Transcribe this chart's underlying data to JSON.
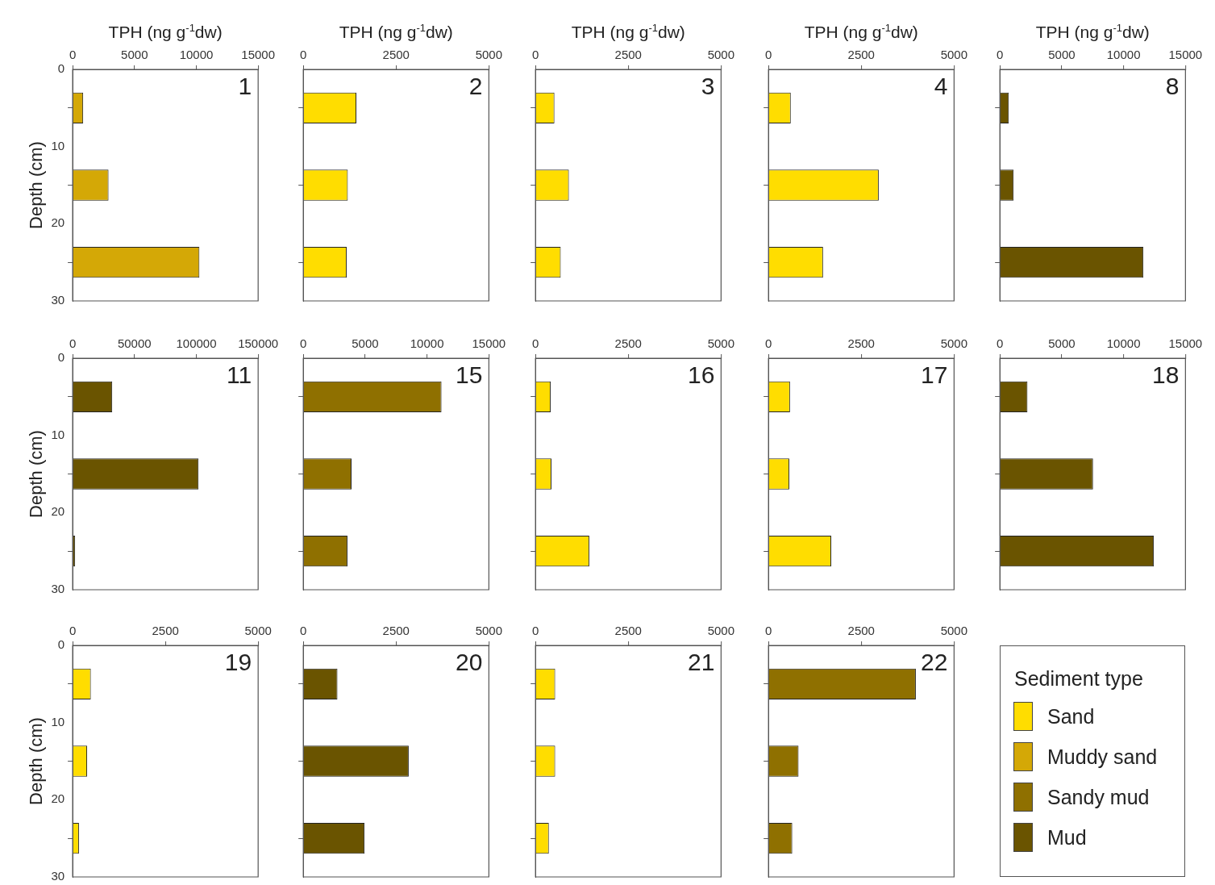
{
  "chart_data": [
    {
      "type": "bar",
      "orientation": "horizontal",
      "title": "1",
      "xlabel": "TPH (ng g$^{-1}$dw)",
      "ylabel": "Depth (cm)",
      "x": [
        5,
        15,
        25
      ],
      "values": [
        850,
        2900,
        10250
      ],
      "color": "#d4a806",
      "xlim": [
        0,
        15000
      ],
      "xticks": [
        0,
        5000,
        10000,
        15000
      ],
      "ylim": [
        30,
        0
      ],
      "yticks": [
        0,
        10,
        20,
        30
      ]
    },
    {
      "type": "bar",
      "orientation": "horizontal",
      "title": "2",
      "xlabel": "TPH (ng g$^{-1}$dw)",
      "x": [
        5,
        15,
        25
      ],
      "values": [
        1430,
        1200,
        1170
      ],
      "color": "#ffdd00",
      "xlim": [
        0,
        5000
      ],
      "xticks": [
        0,
        2500,
        5000
      ],
      "ylim": [
        30,
        0
      ],
      "yticks": [
        0,
        10,
        20,
        30
      ],
      "tick_labels": "x"
    },
    {
      "type": "bar",
      "orientation": "horizontal",
      "title": "3",
      "xlabel": "TPH (ng g$^{-1}$dw)",
      "x": [
        5,
        15,
        25
      ],
      "values": [
        510,
        900,
        680
      ],
      "color": "#ffdd00",
      "xlim": [
        0,
        5000
      ],
      "xticks": [
        0,
        2500,
        5000
      ],
      "ylim": [
        30,
        0
      ],
      "yticks": [
        0,
        10,
        20,
        30
      ],
      "tick_labels": "x"
    },
    {
      "type": "bar",
      "orientation": "horizontal",
      "title": "4",
      "xlabel": "TPH (ng g$^{-1}$dw)",
      "x": [
        5,
        15,
        25
      ],
      "values": [
        600,
        2970,
        1470
      ],
      "color": "#ffdd00",
      "xlim": [
        0,
        5000
      ],
      "xticks": [
        0,
        2500,
        5000
      ],
      "ylim": [
        30,
        0
      ],
      "yticks": [
        0,
        10,
        20,
        30
      ],
      "tick_labels": "x"
    },
    {
      "type": "bar",
      "orientation": "horizontal",
      "title": "8",
      "xlabel": "TPH (ng g$^{-1}$dw)",
      "x": [
        5,
        15,
        25
      ],
      "values": [
        720,
        1110,
        11600
      ],
      "color": "#6a5400",
      "xlim": [
        0,
        15000
      ],
      "xticks": [
        0,
        5000,
        10000,
        15000
      ],
      "ylim": [
        30,
        0
      ],
      "yticks": [
        0,
        10,
        20,
        30
      ],
      "tick_labels": "x"
    },
    {
      "type": "bar",
      "orientation": "horizontal",
      "title": "11",
      "ylabel": "Depth (cm)",
      "x": [
        5,
        15,
        25
      ],
      "values": [
        32000,
        101800,
        2000
      ],
      "color": "#6a5400",
      "xlim": [
        0,
        150000
      ],
      "xticks": [
        0,
        50000,
        100000,
        150000
      ],
      "ylim": [
        30,
        0
      ],
      "yticks": [
        0,
        10,
        20,
        30
      ]
    },
    {
      "type": "bar",
      "orientation": "horizontal",
      "title": "15",
      "x": [
        5,
        15,
        25
      ],
      "values": [
        11170,
        3900,
        3570
      ],
      "color": "#8f7000",
      "xlim": [
        0,
        15000
      ],
      "xticks": [
        0,
        5000,
        10000,
        15000
      ],
      "ylim": [
        30,
        0
      ],
      "yticks": [
        0,
        10,
        20,
        30
      ],
      "tick_labels": "x"
    },
    {
      "type": "bar",
      "orientation": "horizontal",
      "title": "16",
      "x": [
        5,
        15,
        25
      ],
      "values": [
        410,
        430,
        1450
      ],
      "color": "#ffdd00",
      "xlim": [
        0,
        5000
      ],
      "xticks": [
        0,
        2500,
        5000
      ],
      "ylim": [
        30,
        0
      ],
      "yticks": [
        0,
        10,
        20,
        30
      ],
      "tick_labels": "x"
    },
    {
      "type": "bar",
      "orientation": "horizontal",
      "title": "17",
      "x": [
        5,
        15,
        25
      ],
      "values": [
        580,
        560,
        1690
      ],
      "color": "#ffdd00",
      "xlim": [
        0,
        5000
      ],
      "xticks": [
        0,
        2500,
        5000
      ],
      "ylim": [
        30,
        0
      ],
      "yticks": [
        0,
        10,
        20,
        30
      ],
      "tick_labels": "x"
    },
    {
      "type": "bar",
      "orientation": "horizontal",
      "title": "18",
      "x": [
        5,
        15,
        25
      ],
      "values": [
        2230,
        7530,
        12440
      ],
      "color": "#6a5400",
      "xlim": [
        0,
        15000
      ],
      "xticks": [
        0,
        5000,
        10000,
        15000
      ],
      "ylim": [
        30,
        0
      ],
      "yticks": [
        0,
        10,
        20,
        30
      ],
      "tick_labels": "x"
    },
    {
      "type": "bar",
      "orientation": "horizontal",
      "title": "19",
      "ylabel": "Depth (cm)",
      "x": [
        5,
        15,
        25
      ],
      "values": [
        490,
        390,
        170
      ],
      "color": "#ffdd00",
      "xlim": [
        0,
        5000
      ],
      "xticks": [
        0,
        2500,
        5000
      ],
      "ylim": [
        30,
        0
      ],
      "yticks": [
        0,
        10,
        20,
        30
      ]
    },
    {
      "type": "bar",
      "orientation": "horizontal",
      "title": "20",
      "x": [
        5,
        15,
        25
      ],
      "values": [
        920,
        2840,
        1650
      ],
      "color": "#6a5400",
      "xlim": [
        0,
        5000
      ],
      "xticks": [
        0,
        2500,
        5000
      ],
      "ylim": [
        30,
        0
      ],
      "yticks": [
        0,
        10,
        20,
        30
      ],
      "tick_labels": "x"
    },
    {
      "type": "bar",
      "orientation": "horizontal",
      "title": "21",
      "x": [
        5,
        15,
        25
      ],
      "values": [
        530,
        530,
        360
      ],
      "color": "#ffdd00",
      "xlim": [
        0,
        5000
      ],
      "xticks": [
        0,
        2500,
        5000
      ],
      "ylim": [
        30,
        0
      ],
      "yticks": [
        0,
        10,
        20,
        30
      ],
      "tick_labels": "x"
    },
    {
      "type": "bar",
      "orientation": "horizontal",
      "title": "22",
      "x": [
        5,
        15,
        25
      ],
      "values": [
        3970,
        810,
        640
      ],
      "color": "#8f7000",
      "xlim": [
        0,
        5000
      ],
      "xticks": [
        0,
        2500,
        5000
      ],
      "ylim": [
        30,
        0
      ],
      "yticks": [
        0,
        10,
        20,
        30
      ],
      "tick_labels": "x"
    },
    {
      "type": "other",
      "legend_title": "Sediment type",
      "legend": "right",
      "series": [
        {
          "name": "Sand",
          "color": "#ffdd00"
        },
        {
          "name": "Muddy sand",
          "color": "#d4a806"
        },
        {
          "name": "Sandy mud",
          "color": "#8f7000"
        },
        {
          "name": "Mud",
          "color": "#6a5400"
        }
      ]
    }
  ]
}
